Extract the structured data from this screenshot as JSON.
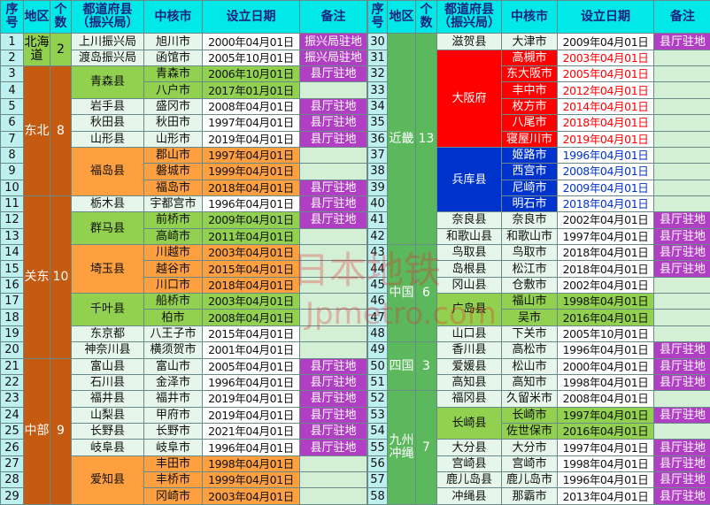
{
  "header": [
    "序号",
    "地区",
    "个数",
    "都道府县（振兴局）",
    "中核市",
    "设立日期",
    "备注"
  ],
  "watermark": {
    "line1": "日本地铁",
    "line2": "Jpmetro.com"
  },
  "tables": [
    {
      "regions": [
        {
          "name": "北海道",
          "count": 2,
          "color": "#92d050",
          "text_color": "#000000",
          "prefectures": [
            {
              "name": "上川振兴局",
              "cities": [
                {
                  "no": 1,
                  "city": "旭川市",
                  "date": "2000年04月01日",
                  "note": "振兴局驻地"
                }
              ]
            },
            {
              "name": "渡岛振兴局",
              "cities": [
                {
                  "no": 2,
                  "city": "函馆市",
                  "date": "2005年10月01日",
                  "note": "振兴局驻地"
                }
              ]
            }
          ]
        },
        {
          "name": "东北",
          "count": 8,
          "color": "#c55a11",
          "text_color": "#ffffff",
          "prefectures": [
            {
              "name": "青森县",
              "color": "#92d050",
              "cities": [
                {
                  "no": 3,
                  "city": "青森市",
                  "date": "2006年10月01日",
                  "note": "县厅驻地"
                },
                {
                  "no": 4,
                  "city": "八户市",
                  "date": "2017年01月01日",
                  "note": null
                }
              ]
            },
            {
              "name": "岩手县",
              "cities": [
                {
                  "no": 5,
                  "city": "盛冈市",
                  "date": "2008年04月01日",
                  "note": "县厅驻地"
                }
              ]
            },
            {
              "name": "秋田县",
              "cities": [
                {
                  "no": 6,
                  "city": "秋田市",
                  "date": "1997年04月01日",
                  "note": "县厅驻地"
                }
              ]
            },
            {
              "name": "山形县",
              "cities": [
                {
                  "no": 7,
                  "city": "山形市",
                  "date": "2019年04月01日",
                  "note": "县厅驻地"
                }
              ]
            },
            {
              "name": "福岛县",
              "color": "#ffa040",
              "cities": [
                {
                  "no": 8,
                  "city": "郡山市",
                  "date": "1997年04月01日",
                  "note": null
                },
                {
                  "no": 9,
                  "city": "磐城市",
                  "date": "1999年04月01日",
                  "note": null
                },
                {
                  "no": 10,
                  "city": "福岛市",
                  "date": "2018年04月01日",
                  "note": "县厅驻地"
                }
              ]
            }
          ]
        },
        {
          "name": "关东",
          "count": 10,
          "color": "#c55a11",
          "text_color": "#ffffff",
          "prefectures": [
            {
              "name": "栃木县",
              "cities": [
                {
                  "no": 11,
                  "city": "宇都宫市",
                  "date": "1996年04月01日",
                  "note": "县厅驻地"
                }
              ]
            },
            {
              "name": "群马县",
              "color": "#92d050",
              "cities": [
                {
                  "no": 12,
                  "city": "前桥市",
                  "date": "2009年04月01日",
                  "note": "县厅驻地"
                },
                {
                  "no": 13,
                  "city": "高崎市",
                  "date": "2011年04月01日",
                  "note": null
                }
              ]
            },
            {
              "name": "埼玉县",
              "color": "#ffa040",
              "cities": [
                {
                  "no": 14,
                  "city": "川越市",
                  "date": "2003年04月01日",
                  "note": null
                },
                {
                  "no": 15,
                  "city": "越谷市",
                  "date": "2015年04月01日",
                  "note": null
                },
                {
                  "no": 16,
                  "city": "川口市",
                  "date": "2018年04月01日",
                  "note": null
                }
              ]
            },
            {
              "name": "千叶县",
              "color": "#92d050",
              "cities": [
                {
                  "no": 17,
                  "city": "船桥市",
                  "date": "2003年04月01日",
                  "note": null
                },
                {
                  "no": 18,
                  "city": "柏市",
                  "date": "2008年04月01日",
                  "note": null
                }
              ]
            },
            {
              "name": "东京都",
              "cities": [
                {
                  "no": 19,
                  "city": "八王子市",
                  "date": "2015年04月01日",
                  "note": null
                }
              ]
            },
            {
              "name": "神奈川县",
              "cities": [
                {
                  "no": 20,
                  "city": "横须贺市",
                  "date": "2001年04月01日",
                  "note": null
                }
              ]
            }
          ]
        },
        {
          "name": "中部",
          "count": 9,
          "color": "#c55a11",
          "text_color": "#ffffff",
          "prefectures": [
            {
              "name": "富山县",
              "cities": [
                {
                  "no": 21,
                  "city": "富山市",
                  "date": "2005年04月01日",
                  "note": "县厅驻地"
                }
              ]
            },
            {
              "name": "石川县",
              "cities": [
                {
                  "no": 22,
                  "city": "金泽市",
                  "date": "1996年04月01日",
                  "note": "县厅驻地"
                }
              ]
            },
            {
              "name": "福井县",
              "cities": [
                {
                  "no": 23,
                  "city": "福井市",
                  "date": "2019年04月01日",
                  "note": "县厅驻地"
                }
              ]
            },
            {
              "name": "山梨县",
              "cities": [
                {
                  "no": 24,
                  "city": "甲府市",
                  "date": "2019年04月01日",
                  "note": "县厅驻地"
                }
              ]
            },
            {
              "name": "长野县",
              "cities": [
                {
                  "no": 25,
                  "city": "长野市",
                  "date": "2021年04月01日",
                  "note": "县厅驻地"
                }
              ]
            },
            {
              "name": "岐阜县",
              "cities": [
                {
                  "no": 26,
                  "city": "岐阜市",
                  "date": "1996年04月01日",
                  "note": "县厅驻地"
                }
              ]
            },
            {
              "name": "爱知县",
              "color": "#ffa040",
              "cities": [
                {
                  "no": 27,
                  "city": "丰田市",
                  "date": "1998年04月01日",
                  "note": null
                },
                {
                  "no": 28,
                  "city": "丰桥市",
                  "date": "1999年04月01日",
                  "note": null
                },
                {
                  "no": 29,
                  "city": "冈崎市",
                  "date": "2003年04月01日",
                  "note": null
                }
              ]
            }
          ]
        }
      ]
    },
    {
      "regions": [
        {
          "name": "近畿",
          "count": 13,
          "color": "#5cb85c",
          "text_color": "#ffffff",
          "prefectures": [
            {
              "name": "滋贺县",
              "cities": [
                {
                  "no": 30,
                  "city": "大津市",
                  "date": "2009年04月01日",
                  "note": "县厅驻地"
                }
              ]
            },
            {
              "name": "大阪府",
              "color": "#ff0000",
              "text_color": "#ffffff",
              "cities": [
                {
                  "no": 31,
                  "city": "高槻市",
                  "date": "2003年04月01日",
                  "note": null
                },
                {
                  "no": 32,
                  "city": "东大阪市",
                  "date": "2005年04月01日",
                  "note": null
                },
                {
                  "no": 33,
                  "city": "丰中市",
                  "date": "2012年04月01日",
                  "note": null
                },
                {
                  "no": 34,
                  "city": "枚方市",
                  "date": "2014年04月01日",
                  "note": null
                },
                {
                  "no": 35,
                  "city": "八尾市",
                  "date": "2018年04月01日",
                  "note": null
                },
                {
                  "no": 36,
                  "city": "寝屋川市",
                  "date": "2019年04月01日",
                  "note": null
                }
              ]
            },
            {
              "name": "兵库县",
              "color": "#0033cc",
              "text_color": "#ffffff",
              "cities": [
                {
                  "no": 37,
                  "city": "姬路市",
                  "date": "1996年04月01日",
                  "note": null
                },
                {
                  "no": 38,
                  "city": "西宫市",
                  "date": "2008年04月01日",
                  "note": null
                },
                {
                  "no": 39,
                  "city": "尼崎市",
                  "date": "2009年04月01日",
                  "note": null
                },
                {
                  "no": 40,
                  "city": "明石市",
                  "date": "2018年04月01日",
                  "note": null
                }
              ]
            },
            {
              "name": "奈良县",
              "cities": [
                {
                  "no": 41,
                  "city": "奈良市",
                  "date": "2002年04月01日",
                  "note": "县厅驻地"
                }
              ]
            },
            {
              "name": "和歌山县",
              "cities": [
                {
                  "no": 42,
                  "city": "和歌山市",
                  "date": "1997年04月01日",
                  "note": "县厅驻地"
                }
              ]
            }
          ]
        },
        {
          "name": "中国",
          "count": 6,
          "color": "#5cb85c",
          "text_color": "#ffffff",
          "prefectures": [
            {
              "name": "鸟取县",
              "cities": [
                {
                  "no": 43,
                  "city": "鸟取市",
                  "date": "2018年04月01日",
                  "note": "县厅驻地"
                }
              ]
            },
            {
              "name": "岛根县",
              "cities": [
                {
                  "no": 44,
                  "city": "松江市",
                  "date": "2018年04月01日",
                  "note": "县厅驻地"
                }
              ]
            },
            {
              "name": "冈山县",
              "cities": [
                {
                  "no": 45,
                  "city": "仓敷市",
                  "date": "2002年04月01日",
                  "note": null
                }
              ]
            },
            {
              "name": "广岛县",
              "color": "#92d050",
              "cities": [
                {
                  "no": 46,
                  "city": "福山市",
                  "date": "1998年04月01日",
                  "note": null
                },
                {
                  "no": 47,
                  "city": "吴市",
                  "date": "2016年04月01日",
                  "note": null
                }
              ]
            },
            {
              "name": "山口县",
              "cities": [
                {
                  "no": 48,
                  "city": "下关市",
                  "date": "2005年10月01日",
                  "note": null
                }
              ]
            }
          ]
        },
        {
          "name": "四国",
          "count": 3,
          "color": "#5cb85c",
          "text_color": "#ffffff",
          "prefectures": [
            {
              "name": "香川县",
              "cities": [
                {
                  "no": 49,
                  "city": "高松市",
                  "date": "1996年04月01日",
                  "note": "县厅驻地"
                }
              ]
            },
            {
              "name": "爱媛县",
              "cities": [
                {
                  "no": 50,
                  "city": "松山市",
                  "date": "2000年04月01日",
                  "note": "县厅驻地"
                }
              ]
            },
            {
              "name": "高知县",
              "cities": [
                {
                  "no": 51,
                  "city": "高知市",
                  "date": "1998年04月01日",
                  "note": "县厅驻地"
                }
              ]
            }
          ]
        },
        {
          "name": "九州冲绳",
          "count": 7,
          "color": "#5cb85c",
          "text_color": "#ffffff",
          "prefectures": [
            {
              "name": "福冈县",
              "cities": [
                {
                  "no": 52,
                  "city": "久留米市",
                  "date": "2008年04月01日",
                  "note": null
                }
              ]
            },
            {
              "name": "长崎县",
              "color": "#92d050",
              "cities": [
                {
                  "no": 53,
                  "city": "长崎市",
                  "date": "1997年04月01日",
                  "note": "县厅驻地"
                },
                {
                  "no": 54,
                  "city": "佐世保市",
                  "date": "2016年04月01日",
                  "note": null
                }
              ]
            },
            {
              "name": "大分县",
              "cities": [
                {
                  "no": 55,
                  "city": "大分市",
                  "date": "1997年04月01日",
                  "note": "县厅驻地"
                }
              ]
            },
            {
              "name": "宫崎县",
              "cities": [
                {
                  "no": 56,
                  "city": "宫崎市",
                  "date": "1998年04月01日",
                  "note": "县厅驻地"
                }
              ]
            },
            {
              "name": "鹿儿岛县",
              "cities": [
                {
                  "no": 57,
                  "city": "鹿儿岛市",
                  "date": "1996年04月01日",
                  "note": "县厅驻地"
                }
              ]
            },
            {
              "name": "冲绳县",
              "cities": [
                {
                  "no": 58,
                  "city": "那霸市",
                  "date": "2013年04月01日",
                  "note": "县厅驻地"
                }
              ]
            }
          ]
        }
      ]
    }
  ]
}
